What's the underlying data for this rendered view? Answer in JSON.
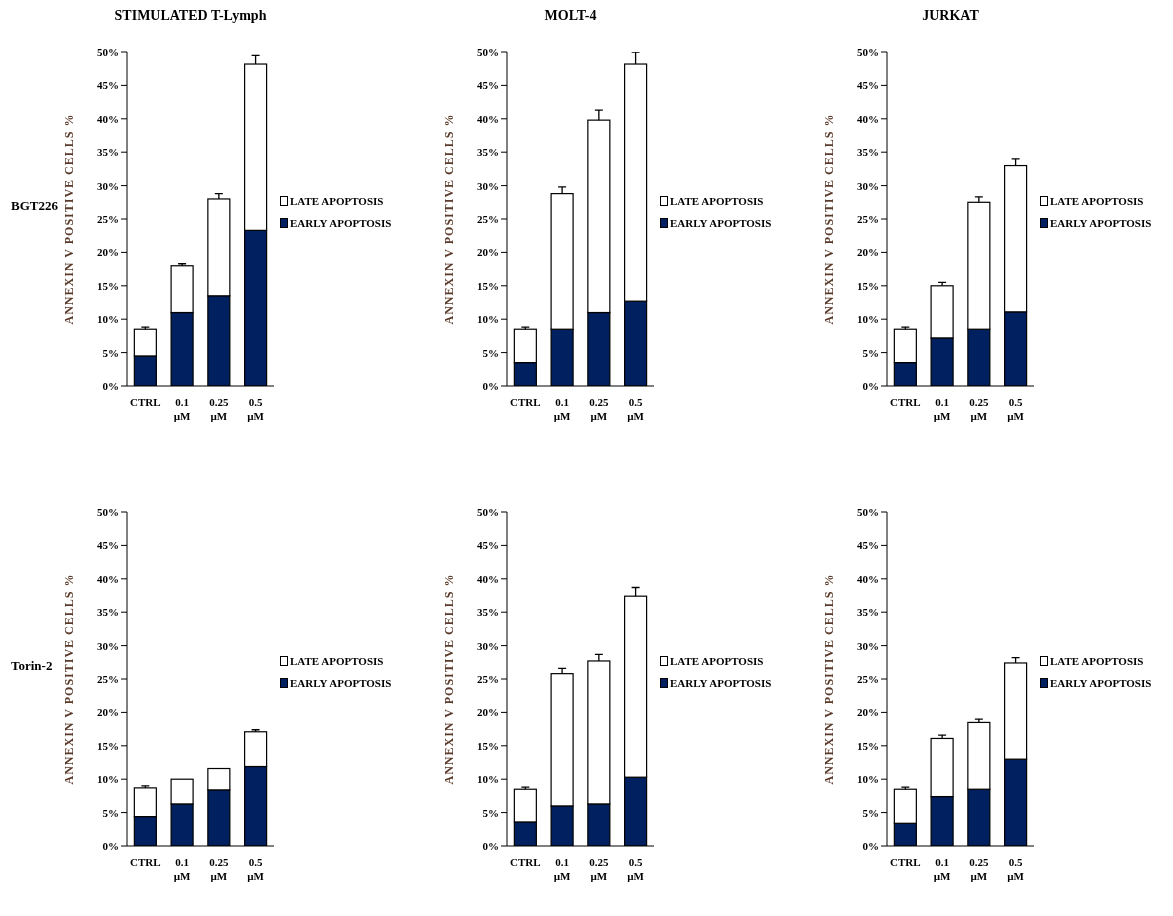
{
  "chart_data": [
    {
      "type": "bar",
      "title": "STIMULATED T-Lymph",
      "annotations": [
        "BGT226"
      ],
      "ylabel": "ANNEXIN V POSITIVE CELLS %",
      "categories": [
        "CTRL",
        "0.1 µM",
        "0.25 µM",
        "0.5 µM"
      ],
      "stacked": true,
      "legend": "right",
      "ylim": [
        0,
        50
      ],
      "yticks": [
        {
          "value": 0,
          "label": "0%"
        },
        {
          "value": 5,
          "label": "5%"
        },
        {
          "value": 10,
          "label": "10%"
        },
        {
          "value": 15,
          "label": "15%"
        },
        {
          "value": 20,
          "label": "20%"
        },
        {
          "value": 25,
          "label": "25%"
        },
        {
          "value": 30,
          "label": "30%"
        },
        {
          "value": 35,
          "label": "35%"
        },
        {
          "value": 40,
          "label": "40%"
        },
        {
          "value": 45,
          "label": "45%"
        },
        {
          "value": 50,
          "label": "50%"
        }
      ],
      "series": [
        {
          "name": "EARLY APOPTOSIS",
          "color": "#002060",
          "values": [
            4.5,
            11,
            13.5,
            23.3
          ]
        },
        {
          "name": "LATE APOPTOSIS",
          "color": "#ffffff",
          "values": [
            4,
            7,
            14.5,
            24.9
          ],
          "errors": [
            [
              8.5,
              8.8
            ],
            [
              18,
              18.3
            ],
            [
              28,
              28.8
            ],
            [
              48.2,
              49.5
            ]
          ]
        }
      ]
    },
    {
      "type": "bar",
      "title": "MOLT-4",
      "ylabel": "ANNEXIN V POSITIVE CELLS %",
      "categories": [
        "CTRL",
        "0.1 µM",
        "0.25 µM",
        "0.5 µM"
      ],
      "stacked": true,
      "legend": "right",
      "ylim": [
        0,
        50
      ],
      "yticks": [
        {
          "value": 0,
          "label": "0%"
        },
        {
          "value": 5,
          "label": "5%"
        },
        {
          "value": 10,
          "label": "10%"
        },
        {
          "value": 15,
          "label": "15%"
        },
        {
          "value": 20,
          "label": "20%"
        },
        {
          "value": 25,
          "label": "25%"
        },
        {
          "value": 30,
          "label": "30%"
        },
        {
          "value": 35,
          "label": "35%"
        },
        {
          "value": 40,
          "label": "40%"
        },
        {
          "value": 45,
          "label": "45%"
        },
        {
          "value": 50,
          "label": "50%"
        }
      ],
      "series": [
        {
          "name": "EARLY APOPTOSIS",
          "color": "#002060",
          "values": [
            3.5,
            8.5,
            11,
            12.7
          ]
        },
        {
          "name": "LATE APOPTOSIS",
          "color": "#ffffff",
          "values": [
            5,
            20.3,
            28.8,
            35.5
          ],
          "errors": [
            [
              8.5,
              8.8
            ],
            [
              28.8,
              29.8
            ],
            [
              39.8,
              41.3
            ],
            [
              48.2,
              50
            ]
          ]
        }
      ]
    },
    {
      "type": "bar",
      "title": "JURKAT",
      "ylabel": "ANNEXIN V POSITIVE CELLS %",
      "categories": [
        "CTRL",
        "0.1 µM",
        "0.25 µM",
        "0.5 µM"
      ],
      "stacked": true,
      "legend": "right",
      "ylim": [
        0,
        50
      ],
      "yticks": [
        {
          "value": 0,
          "label": "0%"
        },
        {
          "value": 5,
          "label": "5%"
        },
        {
          "value": 10,
          "label": "10%"
        },
        {
          "value": 15,
          "label": "15%"
        },
        {
          "value": 20,
          "label": "20%"
        },
        {
          "value": 25,
          "label": "25%"
        },
        {
          "value": 30,
          "label": "30%"
        },
        {
          "value": 35,
          "label": "35%"
        },
        {
          "value": 40,
          "label": "40%"
        },
        {
          "value": 45,
          "label": "45%"
        },
        {
          "value": 50,
          "label": "50%"
        }
      ],
      "series": [
        {
          "name": "EARLY APOPTOSIS",
          "color": "#002060",
          "values": [
            3.5,
            7.2,
            8.5,
            11.1
          ]
        },
        {
          "name": "LATE APOPTOSIS",
          "color": "#ffffff",
          "values": [
            5,
            7.8,
            19,
            21.9
          ],
          "errors": [
            [
              8.5,
              8.8
            ],
            [
              15,
              15.5
            ],
            [
              27.5,
              28.3
            ],
            [
              33,
              34
            ]
          ]
        }
      ]
    },
    {
      "type": "bar",
      "annotations": [
        "Torin-2"
      ],
      "ylabel": "ANNEXIN V POSITIVE CELLS %",
      "categories": [
        "CTRL",
        "0.1 µM",
        "0.25 µM",
        "0.5 µM"
      ],
      "stacked": true,
      "legend": "right",
      "ylim": [
        0,
        50
      ],
      "yticks": [
        {
          "value": 0,
          "label": "0%"
        },
        {
          "value": 5,
          "label": "5%"
        },
        {
          "value": 10,
          "label": "10%"
        },
        {
          "value": 15,
          "label": "15%"
        },
        {
          "value": 20,
          "label": "20%"
        },
        {
          "value": 25,
          "label": "25%"
        },
        {
          "value": 30,
          "label": "30%"
        },
        {
          "value": 35,
          "label": "35%"
        },
        {
          "value": 40,
          "label": "40%"
        },
        {
          "value": 45,
          "label": "45%"
        },
        {
          "value": 50,
          "label": "50%"
        }
      ],
      "series": [
        {
          "name": "EARLY APOPTOSIS",
          "color": "#002060",
          "values": [
            4.4,
            6.3,
            8.4,
            11.9
          ]
        },
        {
          "name": "LATE APOPTOSIS",
          "color": "#ffffff",
          "values": [
            4.3,
            3.7,
            3.2,
            5.2
          ],
          "errors": [
            [
              8.7,
              9
            ],
            null,
            null,
            [
              17.1,
              17.4
            ]
          ]
        }
      ]
    },
    {
      "type": "bar",
      "ylabel": "ANNEXIN V POSITIVE CELLS %",
      "categories": [
        "CTRL",
        "0.1 µM",
        "0.25 µM",
        "0.5 µM"
      ],
      "stacked": true,
      "legend": "right",
      "ylim": [
        0,
        50
      ],
      "yticks": [
        {
          "value": 0,
          "label": "0%"
        },
        {
          "value": 5,
          "label": "5%"
        },
        {
          "value": 10,
          "label": "10%"
        },
        {
          "value": 15,
          "label": "15%"
        },
        {
          "value": 20,
          "label": "20%"
        },
        {
          "value": 25,
          "label": "25%"
        },
        {
          "value": 30,
          "label": "30%"
        },
        {
          "value": 35,
          "label": "35%"
        },
        {
          "value": 40,
          "label": "40%"
        },
        {
          "value": 45,
          "label": "45%"
        },
        {
          "value": 50,
          "label": "50%"
        }
      ],
      "series": [
        {
          "name": "EARLY APOPTOSIS",
          "color": "#002060",
          "values": [
            3.6,
            6,
            6.3,
            10.3
          ]
        },
        {
          "name": "LATE APOPTOSIS",
          "color": "#ffffff",
          "values": [
            4.9,
            19.8,
            21.4,
            27.1
          ],
          "errors": [
            [
              8.5,
              8.8
            ],
            [
              25.8,
              26.6
            ],
            [
              27.7,
              28.7
            ],
            [
              37.4,
              38.7
            ]
          ]
        }
      ]
    },
    {
      "type": "bar",
      "ylabel": "ANNEXIN V POSITIVE CELLS %",
      "categories": [
        "CTRL",
        "0.1 µM",
        "0.25 µM",
        "0.5 µM"
      ],
      "stacked": true,
      "legend": "right",
      "ylim": [
        0,
        50
      ],
      "yticks": [
        {
          "value": 0,
          "label": "0%"
        },
        {
          "value": 5,
          "label": "5%"
        },
        {
          "value": 10,
          "label": "10%"
        },
        {
          "value": 15,
          "label": "15%"
        },
        {
          "value": 20,
          "label": "20%"
        },
        {
          "value": 25,
          "label": "25%"
        },
        {
          "value": 30,
          "label": "30%"
        },
        {
          "value": 35,
          "label": "35%"
        },
        {
          "value": 40,
          "label": "40%"
        },
        {
          "value": 45,
          "label": "45%"
        },
        {
          "value": 50,
          "label": "50%"
        }
      ],
      "series": [
        {
          "name": "EARLY APOPTOSIS",
          "color": "#002060",
          "values": [
            3.4,
            7.4,
            8.5,
            13
          ]
        },
        {
          "name": "LATE APOPTOSIS",
          "color": "#ffffff",
          "values": [
            5.1,
            8.7,
            10,
            14.4
          ],
          "errors": [
            [
              8.5,
              8.8
            ],
            [
              16.1,
              16.6
            ],
            [
              18.5,
              19
            ],
            [
              27.4,
              28.2
            ]
          ]
        }
      ]
    }
  ]
}
